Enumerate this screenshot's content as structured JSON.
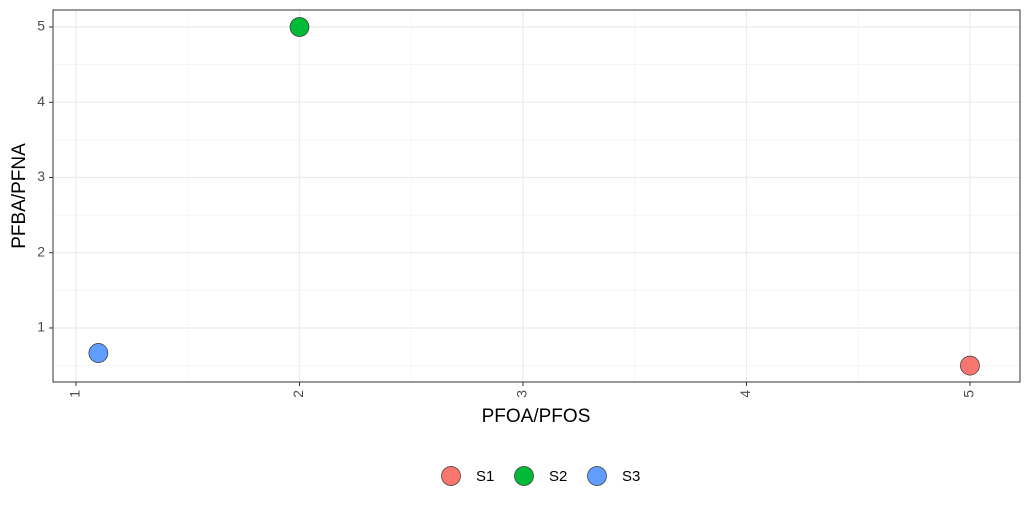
{
  "chart_data": {
    "type": "scatter",
    "x_label": "PFOA/PFOS",
    "y_label": "PFBA/PFNA",
    "series": [
      {
        "name": "S1",
        "color": "#F8766D",
        "x": [
          5
        ],
        "values": [
          0.5
        ]
      },
      {
        "name": "S2",
        "color": "#00BA38",
        "x": [
          2
        ],
        "values": [
          5
        ]
      },
      {
        "name": "S3",
        "color": "#619CFF",
        "x": [
          1.1
        ],
        "values": [
          0.667
        ]
      }
    ],
    "xlim": [
      0.897,
      5.224
    ],
    "xticks": [
      1,
      2,
      3,
      4,
      5
    ],
    "ylim": [
      0.282,
      5.226
    ],
    "yticks": [
      1,
      2,
      3,
      4,
      5
    ],
    "grid": true,
    "legend": "bottom"
  }
}
